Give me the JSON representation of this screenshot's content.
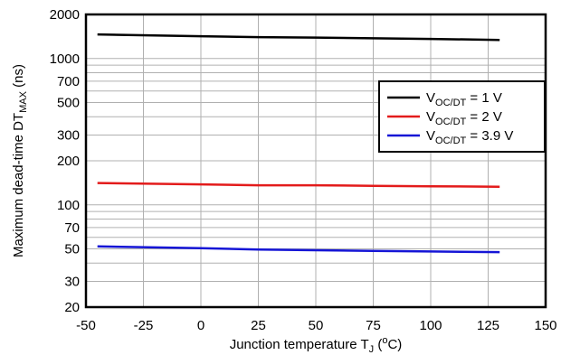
{
  "chart_data": {
    "type": "line",
    "xlabel": {
      "text": "Junction temperature T",
      "sub": "J",
      "tail": " (",
      "sup": "o",
      "unit": "C)"
    },
    "ylabel": {
      "text": "Maximum dead-time DT",
      "sub": "MAX",
      "tail": " (ns)"
    },
    "x_scale": "linear",
    "y_scale": "log",
    "xlim": [
      -50,
      150
    ],
    "ylim": [
      20,
      2000
    ],
    "x_ticks": [
      -50,
      -25,
      0,
      25,
      50,
      75,
      100,
      125,
      150
    ],
    "x_tick_labels": [
      "-50",
      "-25",
      "0",
      "25",
      "50",
      "75",
      "100",
      "125",
      "150"
    ],
    "y_ticks": [
      20,
      30,
      50,
      70,
      100,
      200,
      300,
      500,
      700,
      1000,
      2000
    ],
    "y_tick_labels": [
      "20",
      "30",
      "50",
      "70",
      "100",
      "200",
      "300",
      "500",
      "700",
      "1000",
      "2000"
    ],
    "y_minor_gridlines": [
      20,
      30,
      40,
      50,
      60,
      70,
      80,
      90,
      100,
      200,
      300,
      400,
      500,
      600,
      700,
      800,
      900,
      1000,
      2000
    ],
    "grid": true,
    "legend_position": "right",
    "series": [
      {
        "name": {
          "pre": "V",
          "sub": "OC/DT",
          "post": " = 1 V"
        },
        "color": "#000000",
        "x": [
          -45,
          0,
          25,
          50,
          75,
          100,
          130
        ],
        "y": [
          1460,
          1420,
          1400,
          1390,
          1375,
          1360,
          1340
        ]
      },
      {
        "name": {
          "pre": "V",
          "sub": "OC/DT",
          "post": " = 2 V"
        },
        "color": "#e31b1b",
        "x": [
          -45,
          0,
          25,
          50,
          75,
          100,
          130
        ],
        "y": [
          141,
          138,
          136,
          136,
          135,
          134,
          133
        ]
      },
      {
        "name": {
          "pre": "V",
          "sub": "OC/DT",
          "post": " = 3.9 V"
        },
        "color": "#1515d6",
        "x": [
          -45,
          0,
          25,
          50,
          75,
          100,
          130
        ],
        "y": [
          52,
          50.5,
          49.5,
          49,
          48.5,
          48,
          47.5
        ]
      }
    ]
  }
}
